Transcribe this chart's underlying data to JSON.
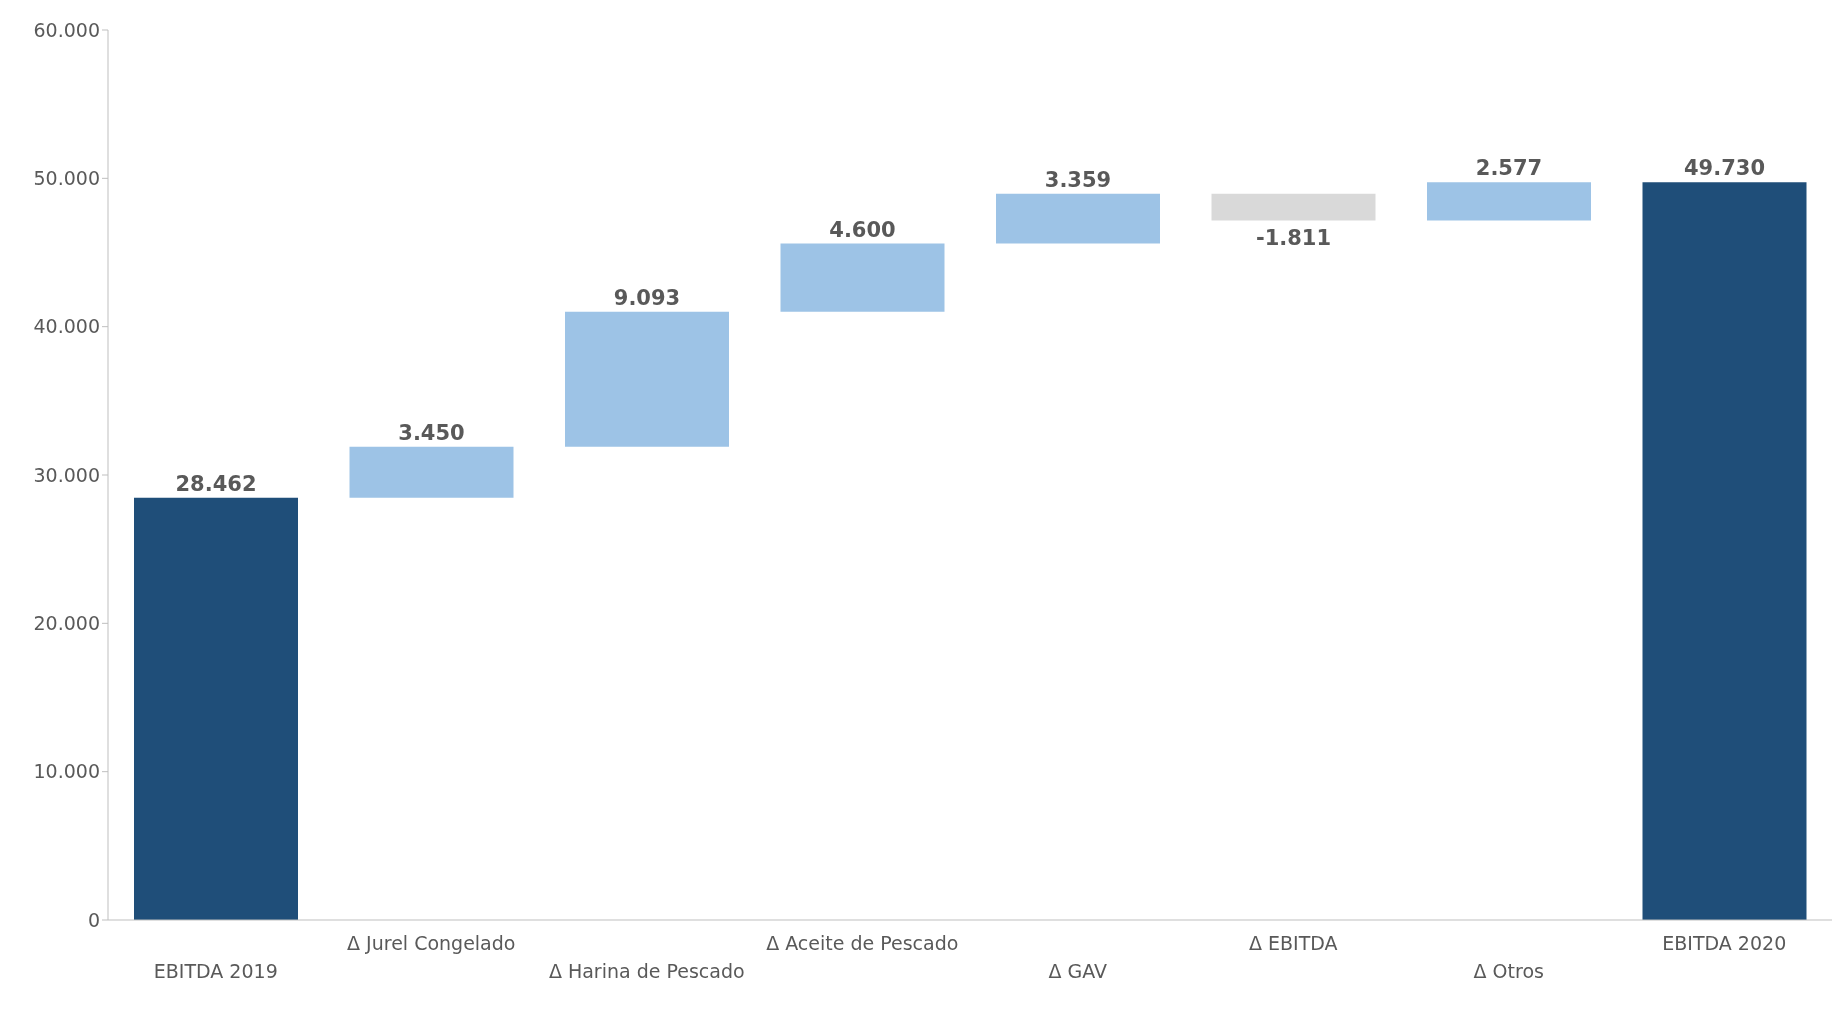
{
  "chart_data": {
    "type": "bar",
    "categories": [
      "EBITDA 2019",
      "Δ Jurel Congelado",
      "Δ Harina de Pescado",
      "Δ Aceite de Pescado",
      "Δ GAV",
      "Δ EBITDA",
      "Δ Otros",
      "EBITDA 2020"
    ],
    "values": [
      28462,
      3450,
      9093,
      4600,
      3359,
      -1811,
      2577,
      49730
    ],
    "base": [
      0,
      28462,
      31912,
      41005,
      45605,
      48964,
      47153,
      0
    ],
    "colors": [
      "#1f4e79",
      "#9dc3e6",
      "#9dc3e6",
      "#9dc3e6",
      "#9dc3e6",
      "#d9d9d9",
      "#9dc3e6",
      "#1f4e79"
    ],
    "value_labels": [
      "28.462",
      "3.450",
      "9.093",
      "4.600",
      "3.359",
      "-1.811",
      "2.577",
      "49.730"
    ],
    "ylim": [
      0,
      60000
    ],
    "yticks": [
      {
        "value": 0,
        "label": "0"
      },
      {
        "value": 10000,
        "label": "10.000"
      },
      {
        "value": 20000,
        "label": "20.000"
      },
      {
        "value": 30000,
        "label": "30.000"
      },
      {
        "value": 40000,
        "label": "40.000"
      },
      {
        "value": 50000,
        "label": "50.000"
      },
      {
        "value": 60000,
        "label": "60.000"
      }
    ],
    "grid": false,
    "legend": false
  }
}
